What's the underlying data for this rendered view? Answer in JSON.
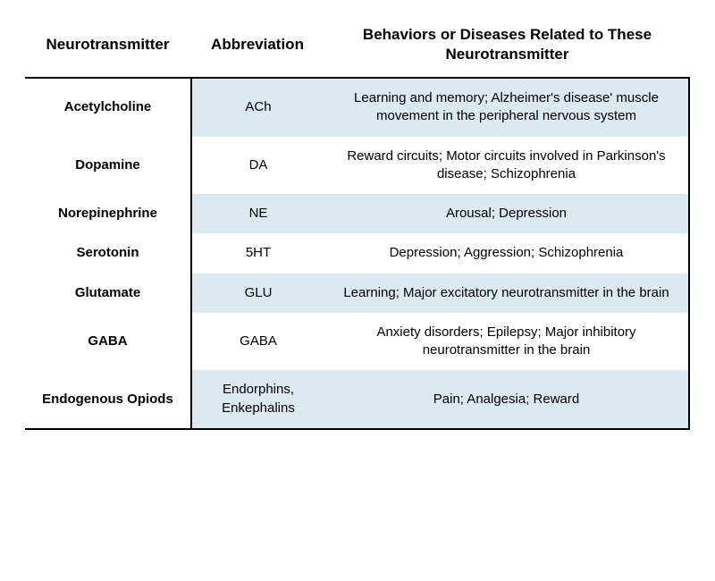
{
  "table": {
    "columns": [
      {
        "header": "Neurotransmitter",
        "width": 185
      },
      {
        "header": "Abbreviation",
        "width": 150
      },
      {
        "header": "Behaviors or Diseases Related to These Neurotransmitter",
        "width": "flex"
      }
    ],
    "header_fontsize": 17,
    "header_fontweight": 700,
    "body_fontsize": 15,
    "col1_fontweight": 700,
    "border_color": "#000000",
    "border_width": 2,
    "stripe_colors": {
      "odd": "#dbe9f1",
      "even": "#ffffff"
    },
    "text_color": "#000000",
    "background_color": "#ffffff",
    "rows": [
      {
        "neurotransmitter": "Acetylcholine",
        "abbreviation": "ACh",
        "behaviors": "Learning and memory; Alzheimer's disease' muscle movement in the peripheral nervous system"
      },
      {
        "neurotransmitter": "Dopamine",
        "abbreviation": "DA",
        "behaviors": "Reward circuits; Motor circuits involved in Parkinson's disease; Schizophrenia"
      },
      {
        "neurotransmitter": "Norepinephrine",
        "abbreviation": "NE",
        "behaviors": "Arousal; Depression"
      },
      {
        "neurotransmitter": "Serotonin",
        "abbreviation": "5HT",
        "behaviors": "Depression; Aggression; Schizophrenia"
      },
      {
        "neurotransmitter": "Glutamate",
        "abbreviation": "GLU",
        "behaviors": "Learning; Major excitatory neurotransmitter in the brain"
      },
      {
        "neurotransmitter": "GABA",
        "abbreviation": "GABA",
        "behaviors": "Anxiety disorders; Epilepsy; Major inhibitory neurotransmitter in the brain"
      },
      {
        "neurotransmitter": "Endogenous Opiods",
        "abbreviation": "Endorphins, Enkephalins",
        "behaviors": "Pain; Analgesia; Reward"
      }
    ]
  }
}
